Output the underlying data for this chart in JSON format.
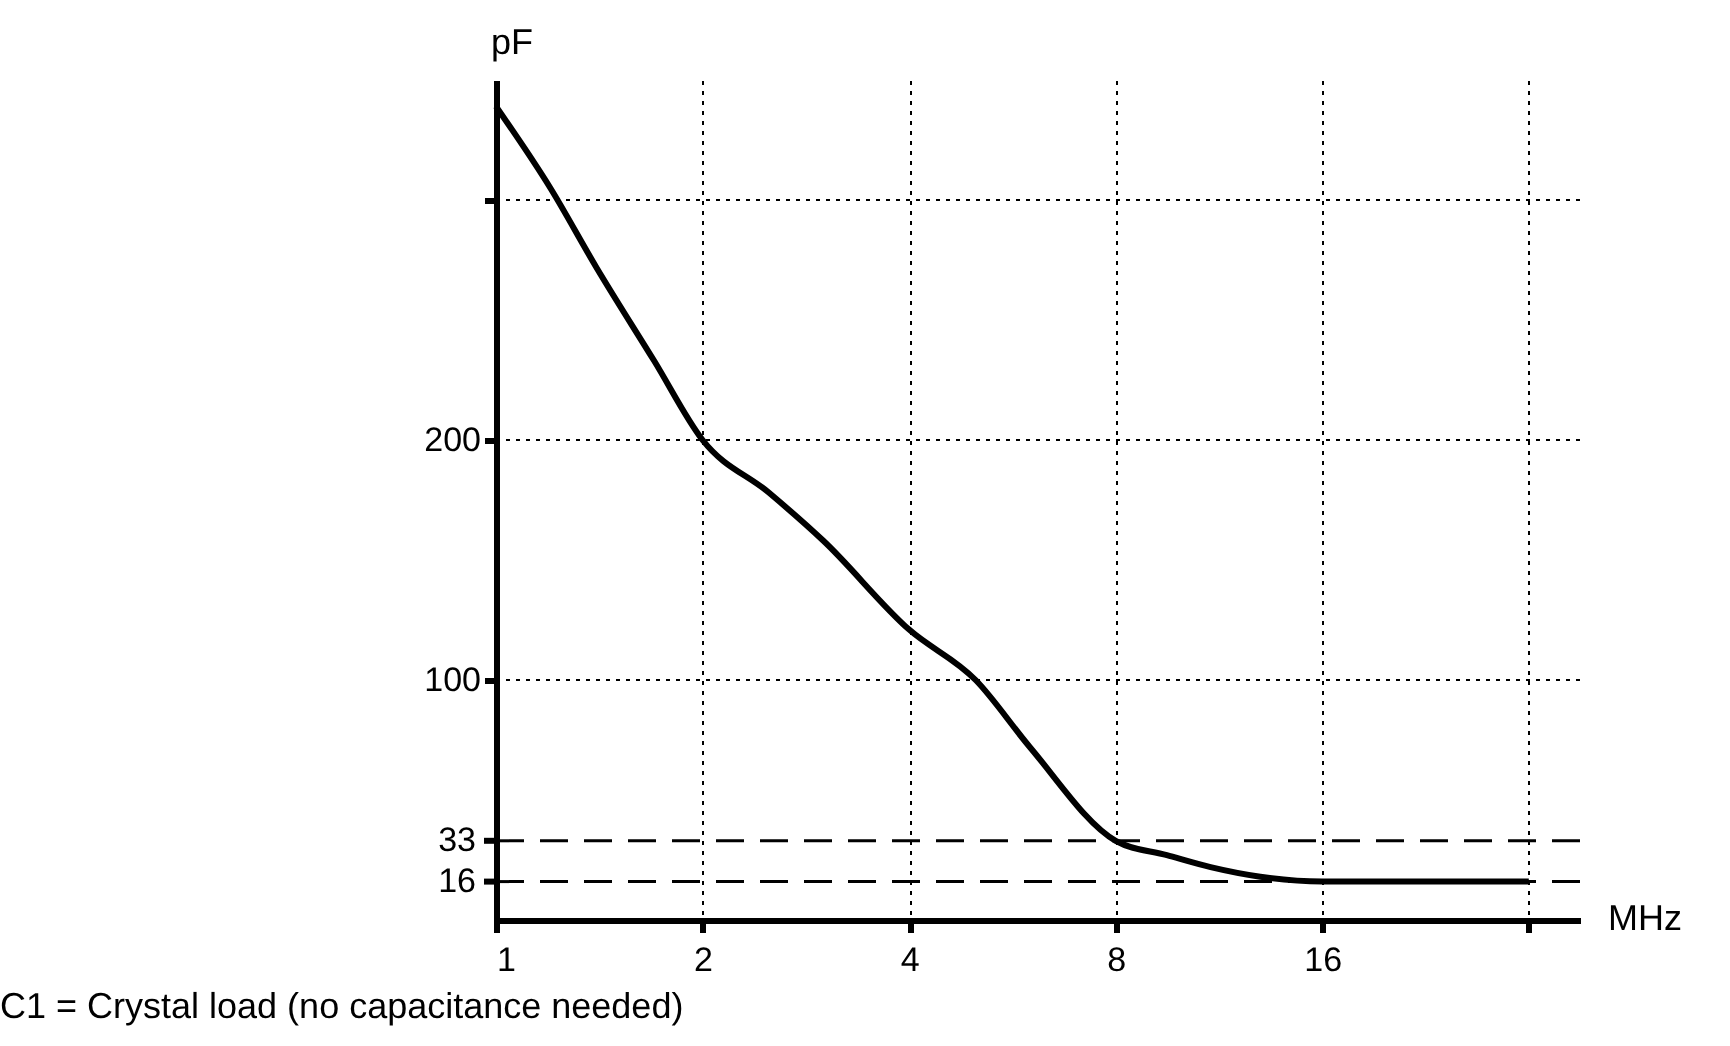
{
  "chart_data": {
    "type": "line",
    "xlabel": "MHz",
    "ylabel": "pF",
    "x": [
      1,
      1.2,
      1.4,
      1.7,
      2,
      2.5,
      3,
      4,
      5,
      6,
      8,
      9.5,
      11,
      13,
      16,
      20,
      32
    ],
    "series": [
      {
        "color": "#000000",
        "values": [
          339,
          305,
          272,
          233,
          200,
          178,
          158,
          121,
          100,
          72,
          33,
          27,
          22,
          18,
          16,
          16,
          16
        ]
      }
    ],
    "log": "x",
    "xlim": [
      1,
      38
    ],
    "xticks": [
      1,
      2,
      4,
      8,
      16,
      {
        "value": 32,
        "label": null
      }
    ],
    "ylim": [
      0,
      350
    ],
    "yticks": [
      100,
      200,
      {
        "value": 300,
        "label": null
      }
    ],
    "grid": true,
    "marker": "none",
    "line_style": "solid",
    "ref_lines": [
      {
        "axis": "y",
        "value": 33,
        "label": "33",
        "line_style": "dashed",
        "color": "#000000"
      },
      {
        "axis": "y",
        "value": 16,
        "label": "16",
        "line_style": "dashed",
        "color": "#000000"
      }
    ],
    "annotations": [
      "C1 = Crystal load (no capacitance needed)"
    ]
  }
}
